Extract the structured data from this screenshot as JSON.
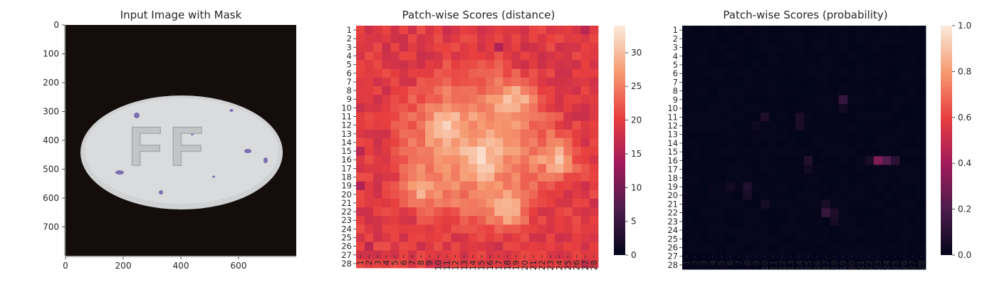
{
  "chart_data": [
    {
      "type": "image",
      "title": "Input Image with Mask",
      "xticks": [
        "0",
        "200",
        "400",
        "600"
      ],
      "yticks": [
        "0",
        "100",
        "200",
        "300",
        "400",
        "500",
        "600",
        "700"
      ],
      "xlim": [
        0,
        800
      ],
      "ylim": [
        800,
        0
      ],
      "image_description": "white oval pill embossed FF with small blue specks on dark background",
      "embossed_text": "FF"
    },
    {
      "type": "heatmap",
      "title": "Patch-wise Scores (distance)",
      "rows": [
        "1",
        "2",
        "3",
        "4",
        "5",
        "6",
        "7",
        "8",
        "9",
        "10",
        "11",
        "12",
        "13",
        "14",
        "15",
        "16",
        "17",
        "18",
        "19",
        "20",
        "21",
        "22",
        "23",
        "24",
        "25",
        "26",
        "27",
        "28"
      ],
      "cols": [
        "1",
        "2",
        "3",
        "4",
        "5",
        "6",
        "7",
        "8",
        "9",
        "10",
        "11",
        "12",
        "13",
        "14",
        "15",
        "16",
        "17",
        "18",
        "19",
        "20",
        "21",
        "22",
        "23",
        "24",
        "25",
        "26",
        "27",
        "28"
      ],
      "colorbar": {
        "min": 0,
        "max": 34,
        "ticks": [
          "0",
          "5",
          "10",
          "15",
          "20",
          "25",
          "30"
        ]
      },
      "colormap": [
        "#03051a",
        "#4c1d4b",
        "#a11a5b",
        "#e83f3f",
        "#f69c73",
        "#faebdd"
      ],
      "base": 21,
      "hotspots": [
        {
          "row": 12,
          "col": 11,
          "value": 30
        },
        {
          "row": 9,
          "col": 19,
          "value": 31
        },
        {
          "row": 16,
          "col": 24,
          "value": 33
        },
        {
          "row": 16,
          "col": 15,
          "value": 30
        },
        {
          "row": 22,
          "col": 18,
          "value": 31
        },
        {
          "row": 20,
          "col": 8,
          "value": 30
        }
      ],
      "coldspots": [
        {
          "row": 3,
          "col": 17,
          "value": 15
        },
        {
          "row": 19,
          "col": 1,
          "value": 15
        },
        {
          "row": 1,
          "col": 27,
          "value": 16
        },
        {
          "row": 26,
          "col": 2,
          "value": 16
        },
        {
          "row": 28,
          "col": 27,
          "value": 17
        },
        {
          "row": 15,
          "col": 1,
          "value": 16
        }
      ]
    },
    {
      "type": "heatmap",
      "title": "Patch-wise Scores (probability)",
      "rows": [
        "1",
        "2",
        "3",
        "4",
        "5",
        "6",
        "7",
        "8",
        "9",
        "10",
        "11",
        "12",
        "13",
        "14",
        "15",
        "16",
        "17",
        "18",
        "19",
        "20",
        "21",
        "22",
        "23",
        "24",
        "25",
        "26",
        "27",
        "28"
      ],
      "cols": [
        "1",
        "2",
        "3",
        "4",
        "5",
        "6",
        "7",
        "8",
        "9",
        "10",
        "11",
        "12",
        "13",
        "14",
        "15",
        "16",
        "17",
        "18",
        "19",
        "20",
        "21",
        "22",
        "23",
        "24",
        "25",
        "26",
        "27",
        "28"
      ],
      "colorbar": {
        "min": 0,
        "max": 1,
        "ticks": [
          "0.0",
          "0.2",
          "0.4",
          "0.6",
          "0.8",
          "1.0"
        ]
      },
      "colormap": [
        "#03051a",
        "#4c1d4b",
        "#a11a5b",
        "#e83f3f",
        "#f69c73",
        "#faebdd"
      ],
      "base": 0,
      "cells": [
        {
          "row": 16,
          "col": 23,
          "value": 0.32
        },
        {
          "row": 16,
          "col": 24,
          "value": 0.22
        },
        {
          "row": 16,
          "col": 25,
          "value": 0.1
        },
        {
          "row": 16,
          "col": 22,
          "value": 0.06
        },
        {
          "row": 9,
          "col": 19,
          "value": 0.14
        },
        {
          "row": 22,
          "col": 17,
          "value": 0.14
        },
        {
          "row": 22,
          "col": 18,
          "value": 0.07
        },
        {
          "row": 21,
          "col": 17,
          "value": 0.06
        },
        {
          "row": 19,
          "col": 8,
          "value": 0.08
        },
        {
          "row": 20,
          "col": 8,
          "value": 0.06
        },
        {
          "row": 11,
          "col": 10,
          "value": 0.07
        },
        {
          "row": 11,
          "col": 14,
          "value": 0.07
        },
        {
          "row": 12,
          "col": 14,
          "value": 0.06
        },
        {
          "row": 16,
          "col": 15,
          "value": 0.08
        },
        {
          "row": 17,
          "col": 15,
          "value": 0.04
        },
        {
          "row": 19,
          "col": 6,
          "value": 0.04
        },
        {
          "row": 21,
          "col": 10,
          "value": 0.05
        },
        {
          "row": 23,
          "col": 18,
          "value": 0.05
        },
        {
          "row": 12,
          "col": 9,
          "value": 0.03
        },
        {
          "row": 10,
          "col": 19,
          "value": 0.04
        }
      ]
    }
  ]
}
